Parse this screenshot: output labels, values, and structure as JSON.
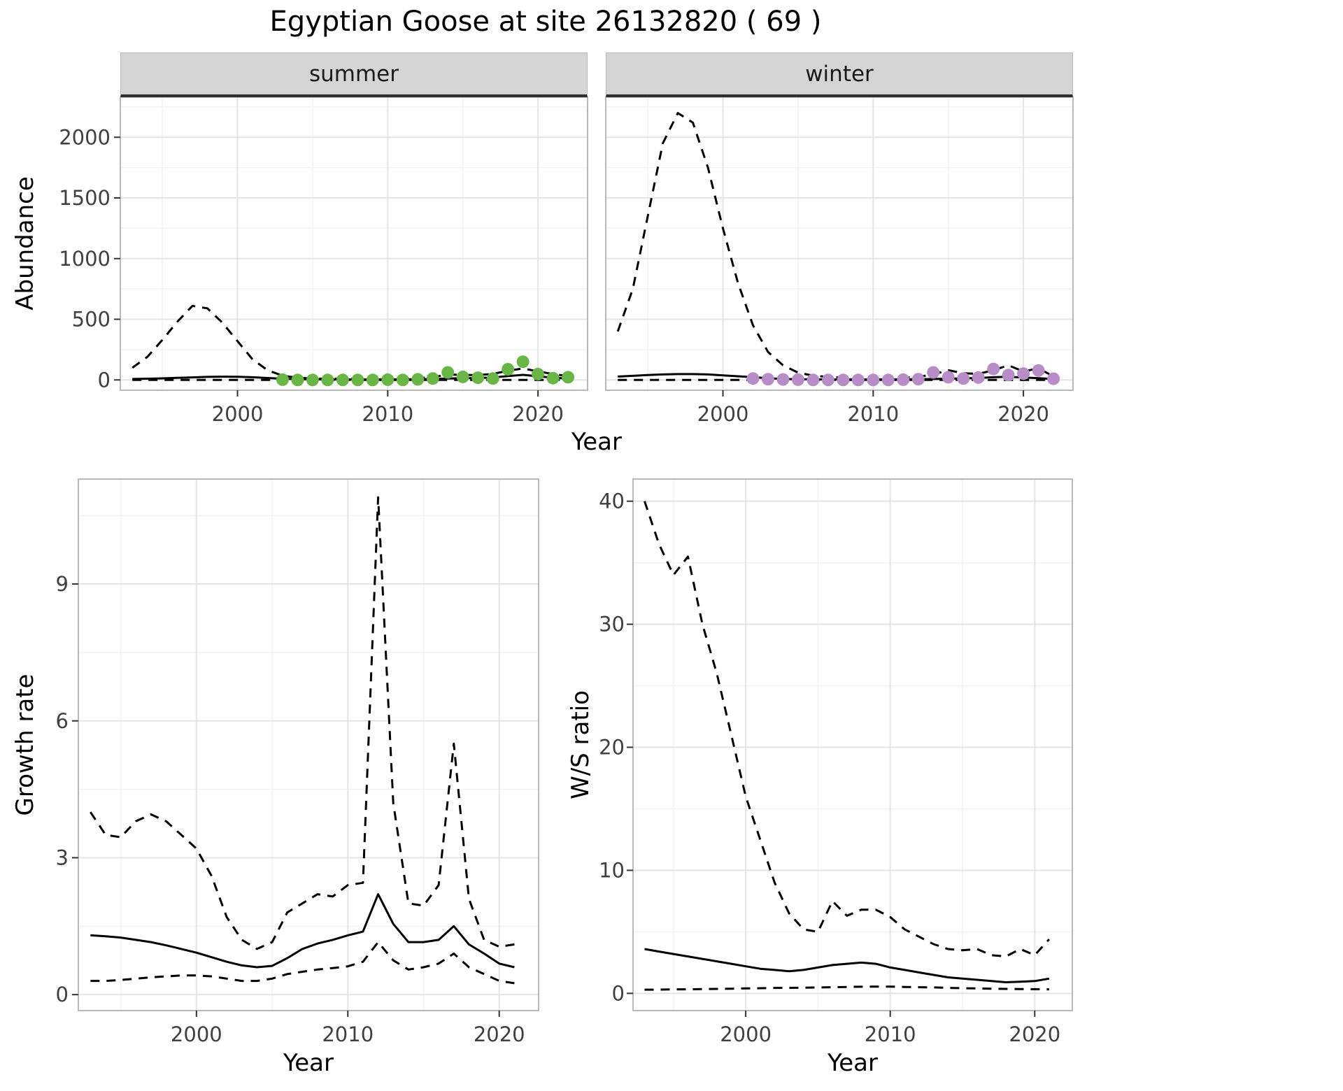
{
  "figure": {
    "title": "Egyptian Goose at site 26132820 ( 69 )",
    "theme": {
      "panel_bg": "#ffffff",
      "grid_major": "#e4e4e4",
      "grid_minor": "#f2f2f2",
      "panel_border": "#b9b9b9",
      "strip_bg": "#d5d5d5",
      "strip_border": "#2f2f2f",
      "line_color": "#000000",
      "tick_color": "#333333",
      "tick_label_color": "#404040"
    }
  },
  "chart_data": [
    {
      "id": "abundance-summer",
      "type": "line",
      "facet": "summer",
      "xlabel": "Year",
      "ylabel": "Abundance",
      "xlim": [
        1992.2,
        2023.3
      ],
      "ylim": [
        -85,
        2330
      ],
      "xticks": [
        2000,
        2010,
        2020
      ],
      "yticks": [
        0,
        500,
        1000,
        1500,
        2000
      ],
      "series": [
        {
          "name": "fit",
          "style": "solid",
          "x": [
            1993,
            1994,
            1995,
            1996,
            1997,
            1998,
            1999,
            2000,
            2001,
            2002,
            2003,
            2004,
            2005,
            2006,
            2007,
            2008,
            2009,
            2010,
            2011,
            2012,
            2013,
            2014,
            2015,
            2016,
            2017,
            2018,
            2019,
            2020,
            2021,
            2022
          ],
          "y": [
            8,
            10,
            13,
            17,
            21,
            25,
            27,
            26,
            22,
            16,
            10,
            6,
            5,
            4,
            4,
            4,
            4,
            5,
            5,
            6,
            8,
            11,
            14,
            16,
            20,
            32,
            42,
            30,
            18,
            12
          ]
        },
        {
          "name": "upper_ci",
          "style": "dashed",
          "x": [
            1993,
            1994,
            1995,
            1996,
            1997,
            1998,
            1999,
            2000,
            2001,
            2002,
            2003,
            2004,
            2005,
            2006,
            2007,
            2008,
            2009,
            2010,
            2011,
            2012,
            2013,
            2014,
            2015,
            2016,
            2017,
            2018,
            2019,
            2020,
            2021,
            2022
          ],
          "y": [
            100,
            190,
            330,
            480,
            610,
            590,
            470,
            320,
            170,
            80,
            35,
            18,
            12,
            10,
            10,
            10,
            10,
            12,
            14,
            16,
            22,
            45,
            40,
            40,
            50,
            75,
            95,
            70,
            48,
            32
          ]
        },
        {
          "name": "lower_ci",
          "style": "dashed",
          "x": [
            1993,
            1994,
            1995,
            1996,
            1997,
            1998,
            1999,
            2000,
            2001,
            2002,
            2003,
            2004,
            2005,
            2006,
            2007,
            2008,
            2009,
            2010,
            2011,
            2012,
            2013,
            2014,
            2015,
            2016,
            2017,
            2018,
            2019,
            2020,
            2021,
            2022
          ],
          "y": [
            0,
            0,
            0,
            0,
            0,
            0,
            0,
            0,
            0,
            0,
            0,
            0,
            0,
            0,
            0,
            0,
            0,
            0,
            0,
            0,
            0,
            0,
            0,
            0,
            0,
            0,
            0,
            0,
            0,
            0
          ]
        }
      ],
      "points": {
        "name": "observed",
        "color": "#69b647",
        "x": [
          2003,
          2004,
          2005,
          2006,
          2007,
          2008,
          2009,
          2010,
          2011,
          2012,
          2013,
          2014,
          2015,
          2016,
          2017,
          2018,
          2019,
          2020,
          2021,
          2022
        ],
        "y": [
          2,
          0,
          0,
          0,
          0,
          0,
          0,
          2,
          0,
          5,
          12,
          62,
          25,
          18,
          12,
          88,
          150,
          48,
          15,
          22
        ]
      }
    },
    {
      "id": "abundance-winter",
      "type": "line",
      "facet": "winter",
      "xlabel": "Year",
      "ylabel": "Abundance",
      "xlim": [
        1992.2,
        2023.3
      ],
      "ylim": [
        -85,
        2330
      ],
      "xticks": [
        2000,
        2010,
        2020
      ],
      "yticks": [
        0,
        500,
        1000,
        1500,
        2000
      ],
      "series": [
        {
          "name": "fit",
          "style": "solid",
          "x": [
            1993,
            1994,
            1995,
            1996,
            1997,
            1998,
            1999,
            2000,
            2001,
            2002,
            2003,
            2004,
            2005,
            2006,
            2007,
            2008,
            2009,
            2010,
            2011,
            2012,
            2013,
            2014,
            2015,
            2016,
            2017,
            2018,
            2019,
            2020,
            2021,
            2022
          ],
          "y": [
            28,
            34,
            40,
            45,
            48,
            48,
            45,
            38,
            30,
            22,
            14,
            8,
            6,
            5,
            4,
            4,
            4,
            4,
            5,
            5,
            6,
            8,
            10,
            13,
            16,
            22,
            26,
            20,
            15,
            8
          ]
        },
        {
          "name": "upper_ci",
          "style": "dashed",
          "x": [
            1993,
            1994,
            1995,
            1996,
            1997,
            1998,
            1999,
            2000,
            2001,
            2002,
            2003,
            2004,
            2005,
            2006,
            2007,
            2008,
            2009,
            2010,
            2011,
            2012,
            2013,
            2014,
            2015,
            2016,
            2017,
            2018,
            2019,
            2020,
            2021,
            2022
          ],
          "y": [
            400,
            750,
            1350,
            1950,
            2200,
            2120,
            1750,
            1250,
            800,
            450,
            230,
            120,
            60,
            35,
            25,
            18,
            15,
            15,
            15,
            18,
            25,
            45,
            80,
            55,
            50,
            80,
            120,
            70,
            95,
            30
          ]
        },
        {
          "name": "lower_ci",
          "style": "dashed",
          "x": [
            1993,
            1994,
            1995,
            1996,
            1997,
            1998,
            1999,
            2000,
            2001,
            2002,
            2003,
            2004,
            2005,
            2006,
            2007,
            2008,
            2009,
            2010,
            2011,
            2012,
            2013,
            2014,
            2015,
            2016,
            2017,
            2018,
            2019,
            2020,
            2021,
            2022
          ],
          "y": [
            0,
            0,
            0,
            0,
            0,
            0,
            0,
            0,
            0,
            0,
            0,
            0,
            0,
            0,
            0,
            0,
            0,
            0,
            0,
            0,
            0,
            0,
            0,
            0,
            0,
            0,
            0,
            0,
            0,
            0
          ]
        }
      ],
      "points": {
        "name": "observed",
        "color": "#b78cc7",
        "x": [
          2002,
          2003,
          2004,
          2005,
          2006,
          2007,
          2008,
          2009,
          2010,
          2011,
          2012,
          2013,
          2014,
          2015,
          2016,
          2017,
          2018,
          2019,
          2020,
          2021,
          2022
        ],
        "y": [
          12,
          6,
          4,
          2,
          0,
          0,
          0,
          0,
          0,
          0,
          2,
          6,
          62,
          22,
          12,
          20,
          90,
          40,
          52,
          78,
          10
        ]
      }
    },
    {
      "id": "growth-rate",
      "type": "line",
      "xlabel": "Year",
      "ylabel": "Growth rate",
      "xlim": [
        1992.2,
        2022.6
      ],
      "ylim": [
        -0.35,
        11.3
      ],
      "xticks": [
        2000,
        2010,
        2020
      ],
      "yticks": [
        0,
        3,
        6,
        9
      ],
      "series": [
        {
          "name": "fit",
          "style": "solid",
          "x": [
            1993,
            1994,
            1995,
            1996,
            1997,
            1998,
            1999,
            2000,
            2001,
            2002,
            2003,
            2004,
            2005,
            2006,
            2007,
            2008,
            2009,
            2010,
            2011,
            2012,
            2013,
            2014,
            2015,
            2016,
            2017,
            2018,
            2019,
            2020,
            2021
          ],
          "y": [
            1.3,
            1.28,
            1.25,
            1.2,
            1.15,
            1.08,
            1.0,
            0.92,
            0.82,
            0.72,
            0.64,
            0.6,
            0.63,
            0.8,
            1.0,
            1.12,
            1.2,
            1.3,
            1.38,
            2.2,
            1.55,
            1.15,
            1.15,
            1.2,
            1.5,
            1.1,
            0.9,
            0.68,
            0.6
          ]
        },
        {
          "name": "upper_ci",
          "style": "dashed",
          "x": [
            1993,
            1994,
            1995,
            1996,
            1997,
            1998,
            1999,
            2000,
            2001,
            2002,
            2003,
            2004,
            2005,
            2006,
            2007,
            2008,
            2009,
            2010,
            2011,
            2012,
            2013,
            2014,
            2015,
            2016,
            2017,
            2018,
            2019,
            2020,
            2021
          ],
          "y": [
            4.0,
            3.5,
            3.45,
            3.8,
            3.95,
            3.8,
            3.5,
            3.2,
            2.6,
            1.7,
            1.2,
            1.0,
            1.15,
            1.8,
            2.0,
            2.2,
            2.15,
            2.4,
            2.45,
            10.9,
            4.2,
            2.0,
            1.95,
            2.4,
            5.5,
            2.1,
            1.2,
            1.05,
            1.1
          ]
        },
        {
          "name": "lower_ci",
          "style": "dashed",
          "x": [
            1993,
            1994,
            1995,
            1996,
            1997,
            1998,
            1999,
            2000,
            2001,
            2002,
            2003,
            2004,
            2005,
            2006,
            2007,
            2008,
            2009,
            2010,
            2011,
            2012,
            2013,
            2014,
            2015,
            2016,
            2017,
            2018,
            2019,
            2020,
            2021
          ],
          "y": [
            0.3,
            0.3,
            0.32,
            0.35,
            0.38,
            0.4,
            0.42,
            0.42,
            0.4,
            0.35,
            0.3,
            0.3,
            0.35,
            0.45,
            0.5,
            0.55,
            0.58,
            0.62,
            0.72,
            1.15,
            0.75,
            0.55,
            0.6,
            0.68,
            0.9,
            0.6,
            0.45,
            0.3,
            0.25
          ]
        }
      ]
    },
    {
      "id": "ws-ratio",
      "type": "line",
      "xlabel": "Year",
      "ylabel": "W/S ratio",
      "xlim": [
        1992.2,
        2022.6
      ],
      "ylim": [
        -1.4,
        41.8
      ],
      "xticks": [
        2000,
        2010,
        2020
      ],
      "yticks": [
        0,
        10,
        20,
        30,
        40
      ],
      "series": [
        {
          "name": "fit",
          "style": "solid",
          "x": [
            1993,
            1994,
            1995,
            1996,
            1997,
            1998,
            1999,
            2000,
            2001,
            2002,
            2003,
            2004,
            2005,
            2006,
            2007,
            2008,
            2009,
            2010,
            2011,
            2012,
            2013,
            2014,
            2015,
            2016,
            2017,
            2018,
            2019,
            2020,
            2021
          ],
          "y": [
            3.6,
            3.4,
            3.2,
            3.0,
            2.8,
            2.6,
            2.4,
            2.2,
            2.0,
            1.9,
            1.8,
            1.9,
            2.1,
            2.3,
            2.4,
            2.5,
            2.4,
            2.1,
            1.9,
            1.7,
            1.5,
            1.3,
            1.2,
            1.1,
            1.0,
            0.9,
            0.95,
            1.0,
            1.2
          ]
        },
        {
          "name": "upper_ci",
          "style": "dashed",
          "x": [
            1993,
            1994,
            1995,
            1996,
            1997,
            1998,
            1999,
            2000,
            2001,
            2002,
            2003,
            2004,
            2005,
            2006,
            2007,
            2008,
            2009,
            2010,
            2011,
            2012,
            2013,
            2014,
            2015,
            2016,
            2017,
            2018,
            2019,
            2020,
            2021
          ],
          "y": [
            40,
            36.5,
            34,
            35.5,
            30,
            26,
            21,
            16,
            12.5,
            9,
            6.5,
            5.2,
            5.0,
            7.5,
            6.3,
            6.8,
            6.8,
            6.2,
            5.2,
            4.6,
            4.0,
            3.6,
            3.5,
            3.6,
            3.1,
            3.0,
            3.6,
            3.1,
            4.4
          ]
        },
        {
          "name": "lower_ci",
          "style": "dashed",
          "x": [
            1993,
            1994,
            1995,
            1996,
            1997,
            1998,
            1999,
            2000,
            2001,
            2002,
            2003,
            2004,
            2005,
            2006,
            2007,
            2008,
            2009,
            2010,
            2011,
            2012,
            2013,
            2014,
            2015,
            2016,
            2017,
            2018,
            2019,
            2020,
            2021
          ],
          "y": [
            0.3,
            0.3,
            0.32,
            0.33,
            0.35,
            0.36,
            0.38,
            0.4,
            0.42,
            0.44,
            0.45,
            0.46,
            0.48,
            0.5,
            0.52,
            0.54,
            0.55,
            0.55,
            0.52,
            0.5,
            0.48,
            0.45,
            0.42,
            0.4,
            0.38,
            0.36,
            0.35,
            0.34,
            0.33
          ]
        }
      ]
    }
  ]
}
